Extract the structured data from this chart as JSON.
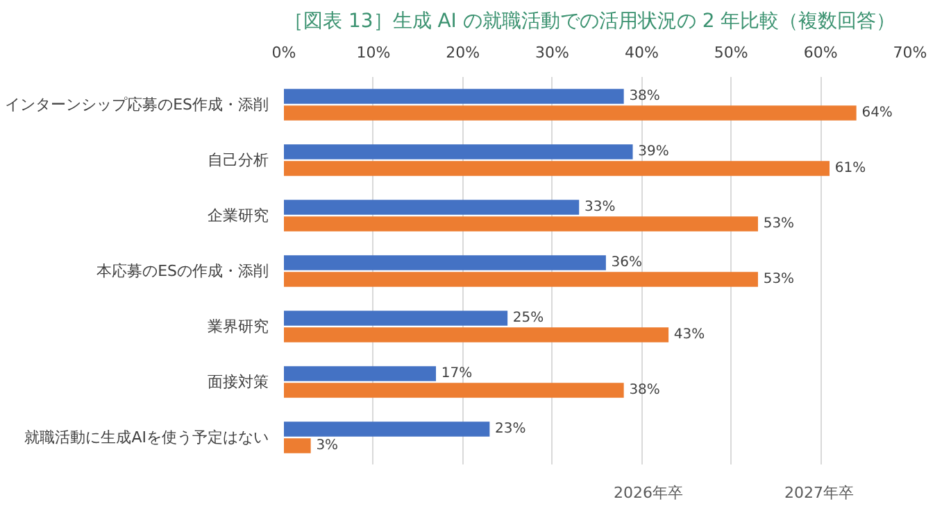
{
  "chart_data": {
    "type": "bar",
    "orientation": "horizontal",
    "title": "［図表 13］生成 AI の就職活動での活用状況の 2 年比較（複数回答）",
    "categories": [
      "インターンシップ応募のES作成・添削",
      "自己分析",
      "企業研究",
      "本応募のESの作成・添削",
      "業界研究",
      "面接対策",
      "就職活動に生成AIを使う予定はない"
    ],
    "series": [
      {
        "name": "2026年卒",
        "color": "#4472c4",
        "values": [
          38,
          39,
          33,
          36,
          25,
          17,
          23
        ],
        "value_labels": [
          "38%",
          "39%",
          "33%",
          "36%",
          "25%",
          "17%",
          "23%"
        ]
      },
      {
        "name": "2027年卒",
        "color": "#ed7d31",
        "values": [
          64,
          61,
          53,
          53,
          43,
          38,
          3
        ],
        "value_labels": [
          "64%",
          "61%",
          "53%",
          "53%",
          "43%",
          "38%",
          "3%"
        ]
      }
    ],
    "xlim": [
      0,
      70
    ],
    "xticks": [
      {
        "value": 0,
        "label": "0%"
      },
      {
        "value": 10,
        "label": "10%"
      },
      {
        "value": 20,
        "label": "20%"
      },
      {
        "value": 30,
        "label": "30%"
      },
      {
        "value": 40,
        "label": "40%"
      },
      {
        "value": 50,
        "label": "50%"
      },
      {
        "value": 60,
        "label": "60%"
      },
      {
        "value": 70,
        "label": "70%"
      }
    ],
    "grid": "x",
    "legend": "bottom"
  }
}
